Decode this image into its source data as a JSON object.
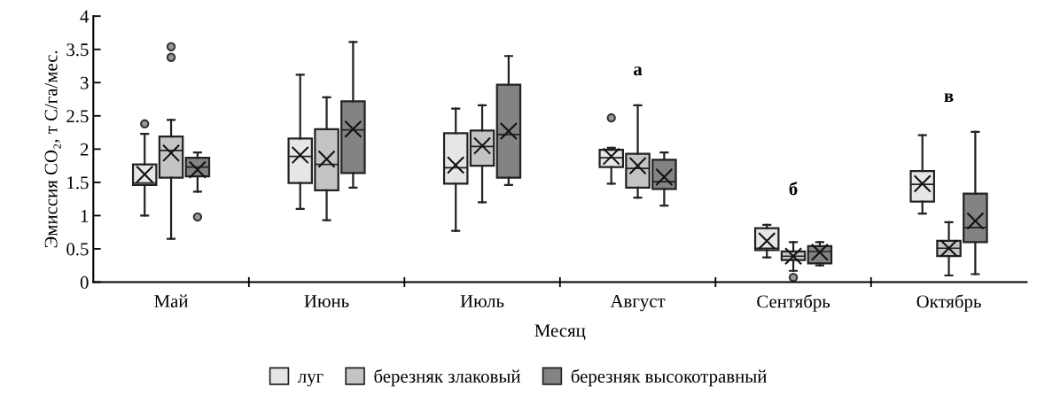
{
  "chart_data": {
    "type": "box",
    "xlabel": "Месяц",
    "ylabel": "Эмиссия CO₂, т С/га/мес.",
    "categories": [
      "Май",
      "Июнь",
      "Июль",
      "Август",
      "Сентябрь",
      "Октябрь"
    ],
    "ylim": [
      0,
      4
    ],
    "yticks": [
      0,
      0.5,
      1,
      1.5,
      2,
      2.5,
      3,
      3.5,
      4
    ],
    "grid": false,
    "legend": "bottom",
    "series": [
      {
        "name": "луг",
        "color": "#e6e6e6",
        "boxes": [
          {
            "low": 1.0,
            "q1": 1.46,
            "median": 1.49,
            "q3": 1.77,
            "high": 2.23,
            "mean": 1.62,
            "outliers": [
              2.38
            ]
          },
          {
            "low": 1.1,
            "q1": 1.49,
            "median": 1.89,
            "q3": 2.16,
            "high": 3.12,
            "mean": 1.91
          },
          {
            "low": 0.77,
            "q1": 1.48,
            "median": 1.72,
            "q3": 2.24,
            "high": 2.61,
            "mean": 1.76
          },
          {
            "low": 1.48,
            "q1": 1.73,
            "median": 1.87,
            "q3": 1.99,
            "high": 2.02,
            "mean": 1.89,
            "outliers": [
              2.47
            ]
          },
          {
            "low": 0.37,
            "q1": 0.48,
            "median": 0.51,
            "q3": 0.81,
            "high": 0.86,
            "mean": 0.62
          },
          {
            "low": 1.03,
            "q1": 1.21,
            "median": 1.47,
            "q3": 1.67,
            "high": 2.21,
            "mean": 1.48
          }
        ]
      },
      {
        "name": "березняк злаковый",
        "color": "#c4c4c4",
        "boxes": [
          {
            "low": 0.65,
            "q1": 1.57,
            "median": 1.98,
            "q3": 2.19,
            "high": 2.44,
            "mean": 1.94,
            "outliers": [
              3.38,
              3.54
            ]
          },
          {
            "low": 0.93,
            "q1": 1.38,
            "median": 1.77,
            "q3": 2.3,
            "high": 2.78,
            "mean": 1.85
          },
          {
            "low": 1.2,
            "q1": 1.75,
            "median": 2.04,
            "q3": 2.28,
            "high": 2.66,
            "mean": 2.05
          },
          {
            "low": 1.27,
            "q1": 1.42,
            "median": 1.71,
            "q3": 1.93,
            "high": 2.66,
            "mean": 1.75
          },
          {
            "low": 0.17,
            "q1": 0.33,
            "median": 0.39,
            "q3": 0.46,
            "high": 0.6,
            "mean": 0.39,
            "outliers": [
              0.07
            ]
          },
          {
            "low": 0.1,
            "q1": 0.39,
            "median": 0.51,
            "q3": 0.62,
            "high": 0.9,
            "mean": 0.51
          }
        ]
      },
      {
        "name": "березняк высокотравный",
        "color": "#838383",
        "boxes": [
          {
            "low": 1.36,
            "q1": 1.59,
            "median": 1.73,
            "q3": 1.87,
            "high": 1.95,
            "mean": 1.69,
            "outliers": [
              0.98
            ]
          },
          {
            "low": 1.42,
            "q1": 1.64,
            "median": 2.29,
            "q3": 2.72,
            "high": 3.61,
            "mean": 2.3
          },
          {
            "low": 1.46,
            "q1": 1.57,
            "median": 2.22,
            "q3": 2.97,
            "high": 3.4,
            "mean": 2.27
          },
          {
            "low": 1.15,
            "q1": 1.4,
            "median": 1.51,
            "q3": 1.84,
            "high": 1.95,
            "mean": 1.58
          },
          {
            "low": 0.25,
            "q1": 0.28,
            "median": 0.46,
            "q3": 0.54,
            "high": 0.6,
            "mean": 0.45
          },
          {
            "low": 0.12,
            "q1": 0.6,
            "median": 0.82,
            "q3": 1.33,
            "high": 2.26,
            "mean": 0.92
          }
        ]
      }
    ],
    "annotations": [
      "а",
      "б",
      "в"
    ]
  }
}
